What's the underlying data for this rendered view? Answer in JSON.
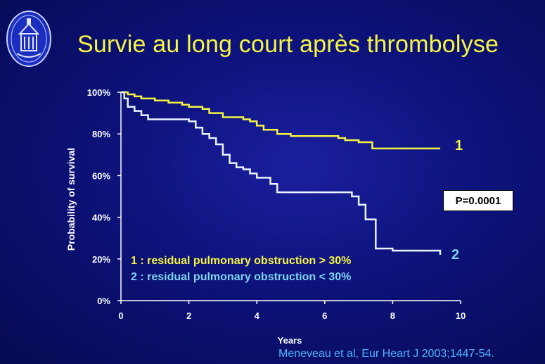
{
  "title": "Survie au long court après thrombolyse",
  "p_value": "P=0.0001",
  "legend": [
    "1 : residual pulmonary obstruction > 30%",
    "2 : residual pulmonary obstruction < 30%"
  ],
  "curve_labels": [
    "1",
    "2"
  ],
  "citation": "Meneveau et al, Eur Heart J 2003;1447-54.",
  "colors": {
    "curve1": "#f5f542",
    "curve2": "#e8f4ff",
    "legend2": "#7fd4f0",
    "citation": "#4fb4ff"
  },
  "chart_data": {
    "type": "line",
    "step": true,
    "xlabel": "Years",
    "ylabel": "Probability of survival",
    "xlim": [
      0,
      10
    ],
    "ylim": [
      0,
      100
    ],
    "x_ticks": [
      "0",
      "2",
      "4",
      "6",
      "8",
      "10"
    ],
    "y_ticks": [
      "0%",
      "20%",
      "40%",
      "60%",
      "80%",
      "100%"
    ],
    "series": [
      {
        "name": "1",
        "x": [
          0,
          0.2,
          0.4,
          0.6,
          1.0,
          1.4,
          1.8,
          2.0,
          2.4,
          2.6,
          3.0,
          3.2,
          3.6,
          3.8,
          4.0,
          4.2,
          4.6,
          5.0,
          6.0,
          6.4,
          6.6,
          7.0,
          7.2,
          7.4,
          8.0,
          9.4
        ],
        "y": [
          100,
          99,
          98,
          97,
          96,
          95,
          94,
          93,
          92,
          90,
          88,
          88,
          87,
          86,
          84,
          82,
          80,
          79,
          79,
          78,
          77,
          76,
          76,
          73,
          73,
          73
        ]
      },
      {
        "name": "2",
        "x": [
          0,
          0.1,
          0.2,
          0.4,
          0.6,
          0.8,
          2.0,
          2.2,
          2.4,
          2.6,
          2.8,
          3.0,
          3.2,
          3.4,
          3.6,
          3.8,
          4.0,
          4.4,
          4.6,
          5.0,
          6.0,
          6.6,
          6.8,
          7.0,
          7.2,
          7.4,
          7.5,
          8.0,
          9.4
        ],
        "y": [
          100,
          97,
          93,
          91,
          89,
          87,
          86,
          83,
          80,
          78,
          75,
          70,
          66,
          64,
          63,
          61,
          59,
          56,
          52,
          52,
          52,
          52,
          50,
          46,
          39,
          39,
          25,
          24,
          22
        ]
      }
    ],
    "annotations": [
      "P=0.0001"
    ]
  }
}
